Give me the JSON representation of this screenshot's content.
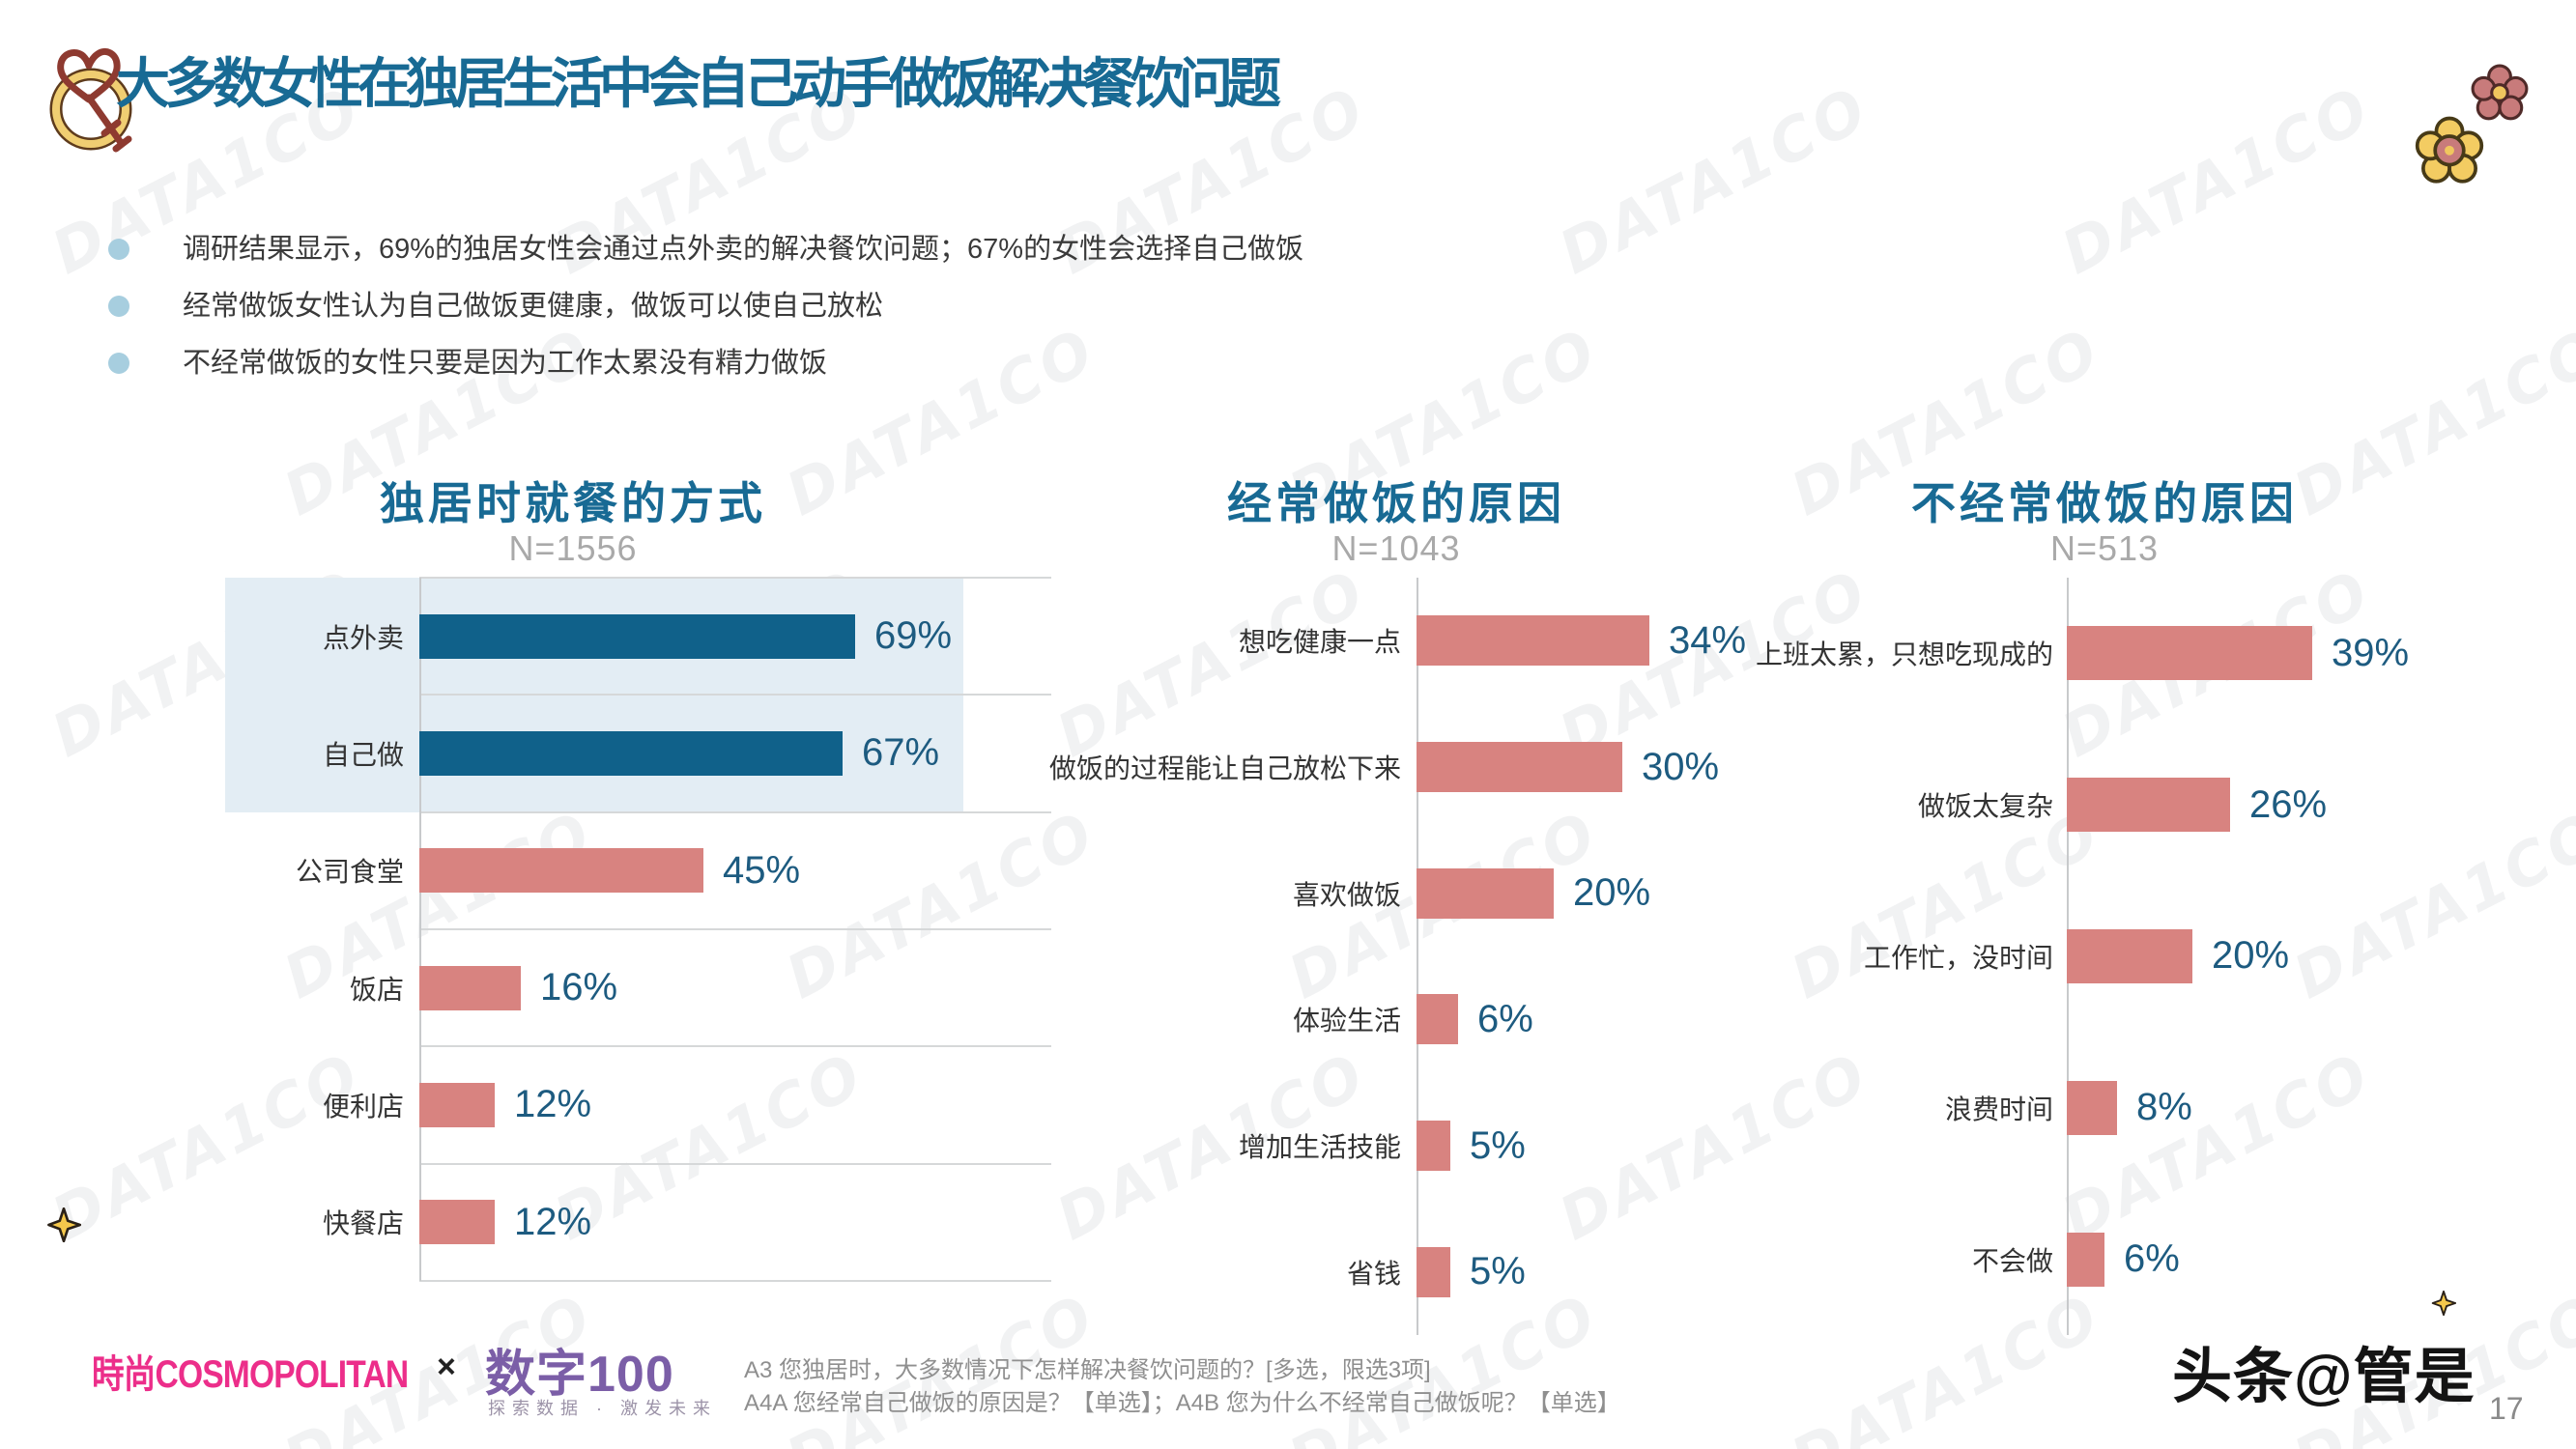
{
  "header": {
    "title": "大多数女性在独居生活中会自己动手做饭解决餐饮问题"
  },
  "bullets": [
    "调研结果显示，69%的独居女性会通过点外卖的解决餐饮问题；67%的女性会选择自己做饭",
    "经常做饭女性认为自己做饭更健康，做饭可以使自己放松",
    "不经常做饭的女性只要是因为工作太累没有精力做饭"
  ],
  "chart_data": [
    {
      "type": "bar",
      "orientation": "horizontal",
      "title": "独居时就餐的方式",
      "sample_label": "N=1556",
      "categories": [
        "点外卖",
        "自己做",
        "公司食堂",
        "饭店",
        "便利店",
        "快餐店"
      ],
      "values": [
        69,
        67,
        45,
        16,
        12,
        12
      ],
      "unit": "%",
      "xlim": [
        0,
        100
      ],
      "grid": true,
      "bar_colors": [
        "#10618a",
        "#10618a",
        "#d8838o_FIX",
        "#d88380",
        "#d88380",
        "#d88380"
      ],
      "highlighted_categories": [
        "点外卖",
        "自己做"
      ]
    },
    {
      "type": "bar",
      "orientation": "horizontal",
      "title": "经常做饭的原因",
      "sample_label": "N=1043",
      "categories": [
        "想吃健康一点",
        "做饭的过程能让自己放松下来",
        "喜欢做饭",
        "体验生活",
        "增加生活技能",
        "省钱"
      ],
      "values": [
        34,
        30,
        20,
        6,
        5,
        5
      ],
      "unit": "%",
      "xlim": [
        0,
        50
      ],
      "grid": false
    },
    {
      "type": "bar",
      "orientation": "horizontal",
      "title": "不经常做饭的原因",
      "sample_label": "N=513",
      "categories": [
        "上班太累，只想吃现成的",
        "做饭太复杂",
        "工作忙，没时间",
        "浪费时间",
        "不会做"
      ],
      "values": [
        39,
        26,
        20,
        8,
        6
      ],
      "unit": "%",
      "xlim": [
        0,
        55
      ],
      "grid": false
    }
  ],
  "footer": {
    "logo_cosmo": "時尚COSMOPOLITAN",
    "logo_x": "×",
    "logo_data100": "数字100",
    "logo_data100_tagline": "探索数据 · 激发未来",
    "footnote_line1": "A3  您独居时，大多数情况下怎样解决餐饮问题的？[多选，限选3项]",
    "footnote_line2": "A4A 您经常自己做饭的原因是？【单选】；A4B 您为什么不经常自己做饭呢？【单选】",
    "logo_toutiao": "头条@管是",
    "page_number": "17"
  },
  "watermark": {
    "text": "DATA1CO"
  },
  "icons": [
    "heart-key-icon",
    "pink-flower-icon",
    "yellow-flower-icon",
    "sparkle-icon"
  ],
  "colors": {
    "title_teal": "#186a94",
    "bar_blue": "#10618a",
    "bar_salmon": "#d88380",
    "value_label": "#1d5b80",
    "highlight_bg": "#e3edf4",
    "bullet_dot": "#a7cedf",
    "cosmo_pink": "#ec2e8a",
    "data100_purple": "#7b5ea7",
    "sparkle_yellow": "#f5c84c"
  }
}
